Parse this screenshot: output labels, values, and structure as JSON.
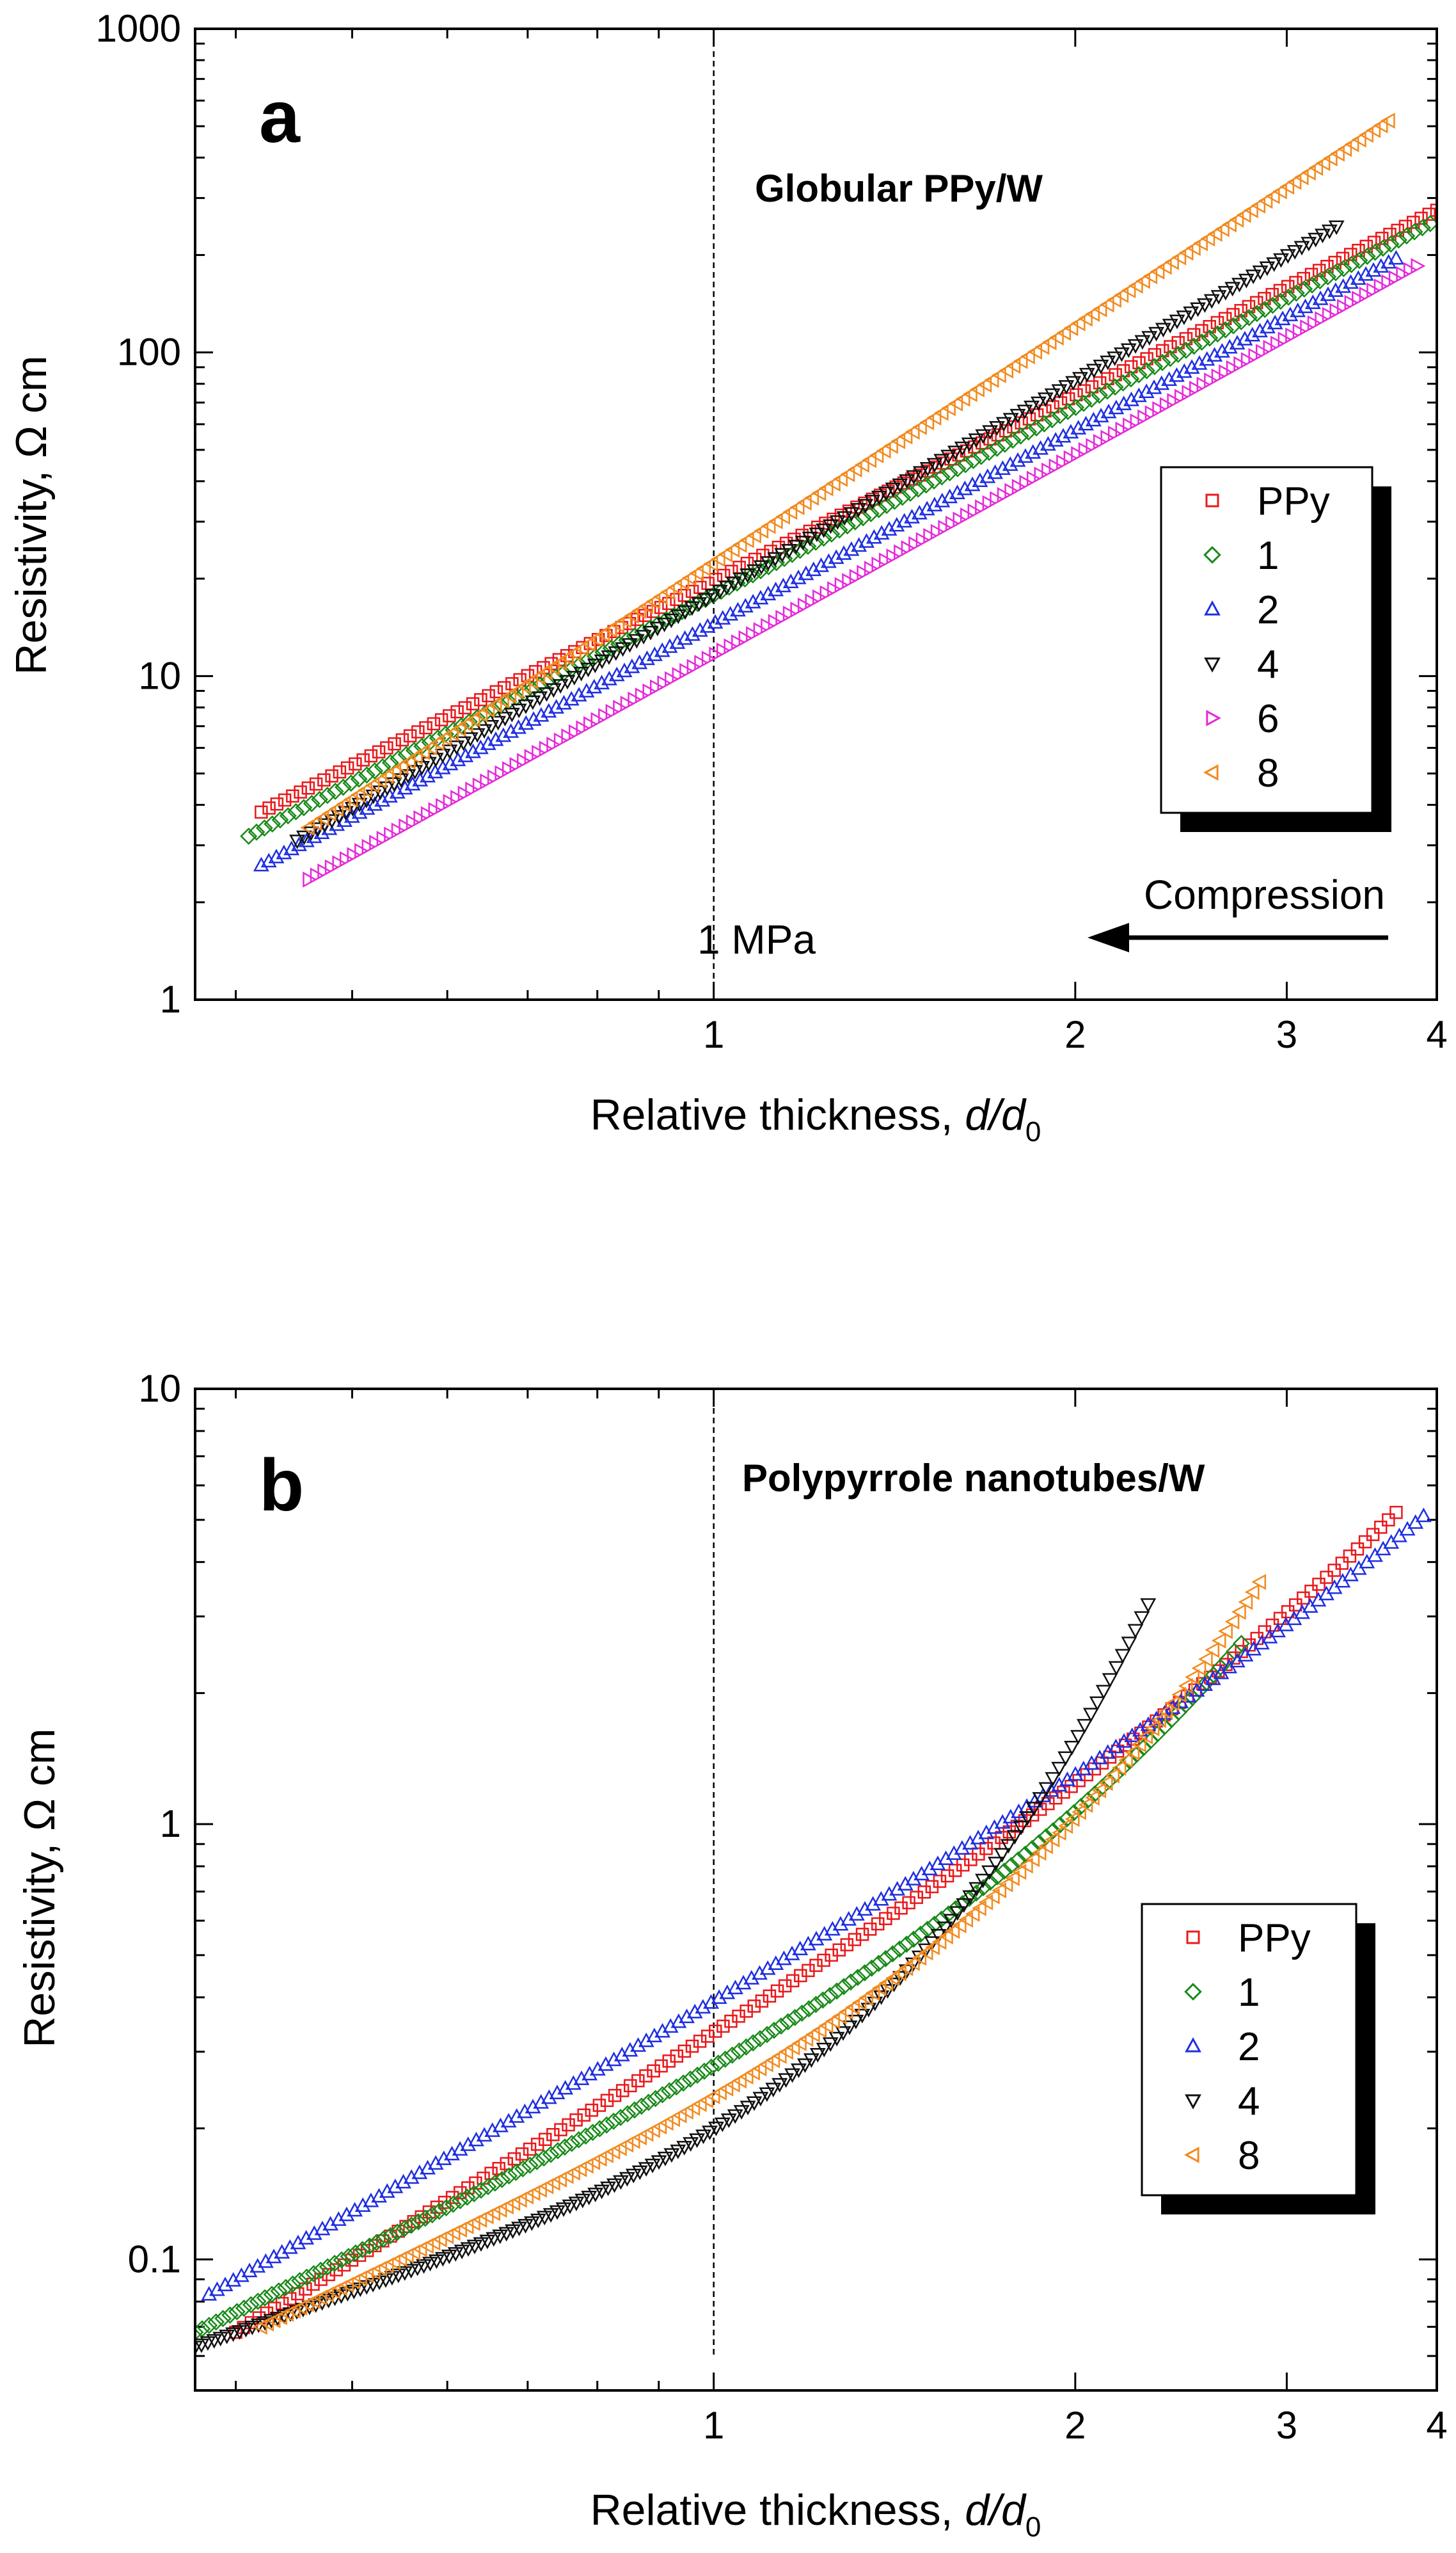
{
  "chart_data": [
    {
      "type": "scatter",
      "panel_label": "a",
      "title": "Globular PPy/W",
      "xlabel": "Relative thickness, ",
      "xlabel_italic": "d/d",
      "xlabel_sub": "0",
      "ylabel": "Resistivity, Ω cm",
      "x_scale": "log",
      "y_scale": "log",
      "xlim": [
        0.37,
        4.0
      ],
      "ylim": [
        1,
        1000
      ],
      "x_ticks": [
        1,
        2,
        3,
        4
      ],
      "x_tick_labels": [
        "1",
        "2",
        "3",
        "4"
      ],
      "y_ticks": [
        1,
        10,
        100,
        1000
      ],
      "y_tick_labels": [
        "1",
        "10",
        "100",
        "1000"
      ],
      "reference_line": {
        "x": 1,
        "label": "1 MPa"
      },
      "annotation": {
        "text": "Compression",
        "direction": "left"
      },
      "legend_position": "right",
      "series": [
        {
          "name": "PPy",
          "marker": "square",
          "color": "#e8191c",
          "x_start": 0.42,
          "x_end": 4.0,
          "y_start": 3.8,
          "y_end": 275,
          "curve": 0
        },
        {
          "name": "1",
          "marker": "diamond",
          "color": "#1a8a1a",
          "x_start": 0.41,
          "x_end": 3.95,
          "y_start": 3.2,
          "y_end": 250,
          "curve": 0
        },
        {
          "name": "2",
          "marker": "triangle-up",
          "color": "#1f2fe0",
          "x_start": 0.42,
          "x_end": 3.7,
          "y_start": 2.6,
          "y_end": 195,
          "curve": 0
        },
        {
          "name": "4",
          "marker": "triangle-down",
          "color": "#111111",
          "x_start": 0.45,
          "x_end": 3.3,
          "y_start": 3.1,
          "y_end": 245,
          "curve": 0
        },
        {
          "name": "6",
          "marker": "triangle-right",
          "color": "#e52ad8",
          "x_start": 0.46,
          "x_end": 3.85,
          "y_start": 2.35,
          "y_end": 185,
          "curve": 0
        },
        {
          "name": "8",
          "marker": "triangle-left",
          "color": "#f28a1e",
          "x_start": 0.46,
          "x_end": 3.65,
          "y_start": 3.4,
          "y_end": 520,
          "curve": 0
        }
      ]
    },
    {
      "type": "scatter",
      "panel_label": "b",
      "title": "Polypyrrole nanotubes/W",
      "xlabel": "Relative thickness, ",
      "xlabel_italic": "d/d",
      "xlabel_sub": "0",
      "ylabel": "Resistivity, Ω cm",
      "x_scale": "log",
      "y_scale": "log",
      "xlim": [
        0.37,
        4.0
      ],
      "ylim": [
        0.05,
        10
      ],
      "x_ticks": [
        1,
        2,
        3,
        4
      ],
      "x_tick_labels": [
        "1",
        "2",
        "3",
        "4"
      ],
      "y_ticks": [
        0.1,
        1,
        10
      ],
      "y_tick_labels": [
        "0.1",
        "1",
        "10"
      ],
      "reference_line": {
        "x": 1,
        "label": ""
      },
      "legend_position": "right",
      "series": [
        {
          "name": "PPy",
          "marker": "square",
          "color": "#e8191c",
          "x_start": 0.4,
          "x_end": 3.7,
          "y_start": 0.068,
          "y_end": 5.2,
          "curve": 0.12
        },
        {
          "name": "1",
          "marker": "diamond",
          "color": "#1a8a1a",
          "x_start": 0.37,
          "x_end": 2.75,
          "y_start": 0.068,
          "y_end": 2.6,
          "curve": 0.25
        },
        {
          "name": "2",
          "marker": "triangle-up",
          "color": "#1f2fe0",
          "x_start": 0.38,
          "x_end": 3.9,
          "y_start": 0.083,
          "y_end": 5.1,
          "curve": 0.1
        },
        {
          "name": "4",
          "marker": "triangle-down",
          "color": "#111111",
          "x_start": 0.37,
          "x_end": 2.3,
          "y_start": 0.063,
          "y_end": 3.2,
          "curve": 0.55
        },
        {
          "name": "8",
          "marker": "triangle-left",
          "color": "#f28a1e",
          "x_start": 0.42,
          "x_end": 2.85,
          "y_start": 0.07,
          "y_end": 3.6,
          "curve": 0.35
        }
      ]
    }
  ]
}
